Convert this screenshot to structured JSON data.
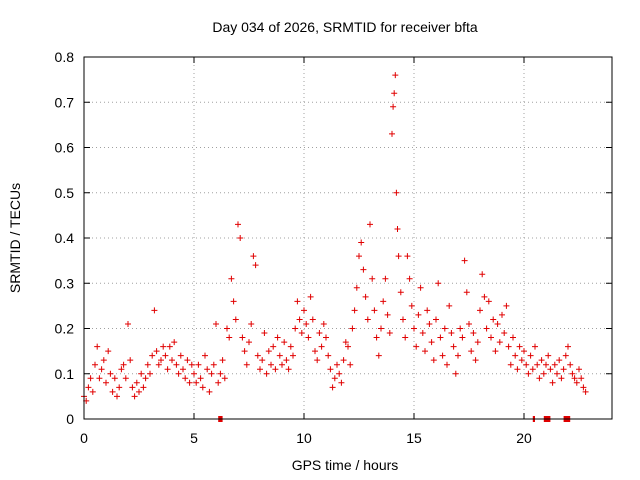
{
  "chart_data": {
    "type": "scatter",
    "title": "Day 034 of 2026, SRMTID for receiver bfta",
    "xlabel": "GPS time / hours",
    "ylabel": "SRMTID / TECUs",
    "xlim": [
      0,
      24
    ],
    "ylim": [
      0,
      0.8
    ],
    "xticks": [
      0,
      5,
      10,
      15,
      20
    ],
    "xtick_labels": [
      "0",
      "5",
      "10",
      "15",
      "20"
    ],
    "yticks": [
      0,
      0.1,
      0.2,
      0.3,
      0.4,
      0.5,
      0.6,
      0.7,
      0.8
    ],
    "ytick_labels": [
      "0",
      "0.1",
      "0.2",
      "0.3",
      "0.4",
      "0.5",
      "0.6",
      "0.7",
      "0.8"
    ],
    "grid": true,
    "marker": "+",
    "color": "#e00000",
    "series": [
      {
        "name": "SRMTID",
        "points": [
          [
            0.0,
            0.05
          ],
          [
            0.1,
            0.04
          ],
          [
            0.2,
            0.07
          ],
          [
            0.3,
            0.09
          ],
          [
            0.4,
            0.06
          ],
          [
            0.5,
            0.12
          ],
          [
            0.6,
            0.16
          ],
          [
            0.7,
            0.09
          ],
          [
            0.8,
            0.11
          ],
          [
            0.9,
            0.13
          ],
          [
            1.0,
            0.08
          ],
          [
            1.1,
            0.15
          ],
          [
            1.2,
            0.1
          ],
          [
            1.3,
            0.06
          ],
          [
            1.4,
            0.09
          ],
          [
            1.5,
            0.05
          ],
          [
            1.6,
            0.07
          ],
          [
            1.7,
            0.11
          ],
          [
            1.8,
            0.12
          ],
          [
            1.9,
            0.09
          ],
          [
            2.0,
            0.21
          ],
          [
            2.1,
            0.13
          ],
          [
            2.2,
            0.07
          ],
          [
            2.3,
            0.05
          ],
          [
            2.4,
            0.08
          ],
          [
            2.5,
            0.06
          ],
          [
            2.6,
            0.1
          ],
          [
            2.7,
            0.07
          ],
          [
            2.8,
            0.09
          ],
          [
            2.9,
            0.12
          ],
          [
            3.0,
            0.1
          ],
          [
            3.1,
            0.14
          ],
          [
            3.2,
            0.24
          ],
          [
            3.3,
            0.15
          ],
          [
            3.4,
            0.12
          ],
          [
            3.5,
            0.13
          ],
          [
            3.6,
            0.16
          ],
          [
            3.7,
            0.14
          ],
          [
            3.8,
            0.11
          ],
          [
            3.9,
            0.16
          ],
          [
            4.0,
            0.13
          ],
          [
            4.1,
            0.17
          ],
          [
            4.2,
            0.12
          ],
          [
            4.3,
            0.1
          ],
          [
            4.4,
            0.14
          ],
          [
            4.5,
            0.11
          ],
          [
            4.6,
            0.09
          ],
          [
            4.7,
            0.13
          ],
          [
            4.8,
            0.08
          ],
          [
            4.9,
            0.12
          ],
          [
            5.0,
            0.1
          ],
          [
            5.1,
            0.08
          ],
          [
            5.2,
            0.12
          ],
          [
            5.3,
            0.09
          ],
          [
            5.4,
            0.07
          ],
          [
            5.5,
            0.14
          ],
          [
            5.6,
            0.11
          ],
          [
            5.7,
            0.06
          ],
          [
            5.8,
            0.1
          ],
          [
            5.9,
            0.12
          ],
          [
            6.0,
            0.21
          ],
          [
            6.1,
            0.08
          ],
          [
            6.2,
            0.1
          ],
          [
            6.3,
            0.13
          ],
          [
            6.4,
            0.09
          ],
          [
            6.5,
            0.2
          ],
          [
            6.6,
            0.18
          ],
          [
            6.7,
            0.31
          ],
          [
            6.8,
            0.26
          ],
          [
            6.9,
            0.22
          ],
          [
            7.0,
            0.43
          ],
          [
            7.1,
            0.4
          ],
          [
            7.2,
            0.18
          ],
          [
            7.3,
            0.15
          ],
          [
            7.4,
            0.12
          ],
          [
            7.5,
            0.17
          ],
          [
            7.6,
            0.21
          ],
          [
            7.7,
            0.36
          ],
          [
            7.8,
            0.34
          ],
          [
            7.9,
            0.14
          ],
          [
            8.0,
            0.11
          ],
          [
            8.1,
            0.13
          ],
          [
            8.2,
            0.19
          ],
          [
            8.3,
            0.1
          ],
          [
            8.4,
            0.15
          ],
          [
            8.5,
            0.12
          ],
          [
            8.6,
            0.16
          ],
          [
            8.7,
            0.11
          ],
          [
            8.8,
            0.18
          ],
          [
            8.9,
            0.14
          ],
          [
            9.0,
            0.12
          ],
          [
            9.1,
            0.17
          ],
          [
            9.2,
            0.13
          ],
          [
            9.3,
            0.11
          ],
          [
            9.4,
            0.16
          ],
          [
            9.5,
            0.14
          ],
          [
            9.6,
            0.2
          ],
          [
            9.7,
            0.26
          ],
          [
            9.8,
            0.22
          ],
          [
            9.9,
            0.19
          ],
          [
            10.0,
            0.24
          ],
          [
            10.1,
            0.21
          ],
          [
            10.2,
            0.18
          ],
          [
            10.3,
            0.27
          ],
          [
            10.4,
            0.22
          ],
          [
            10.5,
            0.15
          ],
          [
            10.6,
            0.13
          ],
          [
            10.7,
            0.19
          ],
          [
            10.8,
            0.16
          ],
          [
            10.9,
            0.21
          ],
          [
            11.0,
            0.18
          ],
          [
            11.1,
            0.14
          ],
          [
            11.2,
            0.11
          ],
          [
            11.3,
            0.07
          ],
          [
            11.4,
            0.09
          ],
          [
            11.5,
            0.12
          ],
          [
            11.6,
            0.1
          ],
          [
            11.7,
            0.08
          ],
          [
            11.8,
            0.13
          ],
          [
            11.9,
            0.17
          ],
          [
            12.0,
            0.16
          ],
          [
            12.1,
            0.12
          ],
          [
            12.2,
            0.2
          ],
          [
            12.3,
            0.24
          ],
          [
            12.4,
            0.29
          ],
          [
            12.5,
            0.36
          ],
          [
            12.6,
            0.39
          ],
          [
            12.7,
            0.33
          ],
          [
            12.8,
            0.27
          ],
          [
            12.9,
            0.22
          ],
          [
            13.0,
            0.43
          ],
          [
            13.1,
            0.31
          ],
          [
            13.2,
            0.24
          ],
          [
            13.3,
            0.18
          ],
          [
            13.4,
            0.14
          ],
          [
            13.5,
            0.2
          ],
          [
            13.6,
            0.26
          ],
          [
            13.7,
            0.31
          ],
          [
            13.8,
            0.23
          ],
          [
            13.9,
            0.19
          ],
          [
            14.0,
            0.63
          ],
          [
            14.05,
            0.69
          ],
          [
            14.1,
            0.72
          ],
          [
            14.15,
            0.76
          ],
          [
            14.2,
            0.5
          ],
          [
            14.25,
            0.42
          ],
          [
            14.3,
            0.36
          ],
          [
            14.4,
            0.28
          ],
          [
            14.5,
            0.22
          ],
          [
            14.6,
            0.18
          ],
          [
            14.7,
            0.36
          ],
          [
            14.8,
            0.31
          ],
          [
            14.9,
            0.25
          ],
          [
            15.0,
            0.2
          ],
          [
            15.1,
            0.16
          ],
          [
            15.2,
            0.23
          ],
          [
            15.3,
            0.29
          ],
          [
            15.4,
            0.19
          ],
          [
            15.5,
            0.15
          ],
          [
            15.6,
            0.24
          ],
          [
            15.7,
            0.21
          ],
          [
            15.8,
            0.17
          ],
          [
            15.9,
            0.13
          ],
          [
            16.0,
            0.22
          ],
          [
            16.1,
            0.3
          ],
          [
            16.2,
            0.18
          ],
          [
            16.3,
            0.14
          ],
          [
            16.4,
            0.2
          ],
          [
            16.5,
            0.12
          ],
          [
            16.6,
            0.25
          ],
          [
            16.7,
            0.19
          ],
          [
            16.8,
            0.16
          ],
          [
            16.9,
            0.1
          ],
          [
            17.0,
            0.14
          ],
          [
            17.1,
            0.2
          ],
          [
            17.2,
            0.18
          ],
          [
            17.3,
            0.35
          ],
          [
            17.4,
            0.28
          ],
          [
            17.5,
            0.21
          ],
          [
            17.6,
            0.15
          ],
          [
            17.7,
            0.19
          ],
          [
            17.8,
            0.13
          ],
          [
            17.9,
            0.17
          ],
          [
            18.0,
            0.24
          ],
          [
            18.1,
            0.32
          ],
          [
            18.2,
            0.27
          ],
          [
            18.3,
            0.2
          ],
          [
            18.4,
            0.26
          ],
          [
            18.5,
            0.18
          ],
          [
            18.6,
            0.22
          ],
          [
            18.7,
            0.15
          ],
          [
            18.8,
            0.21
          ],
          [
            18.9,
            0.17
          ],
          [
            19.0,
            0.23
          ],
          [
            19.1,
            0.19
          ],
          [
            19.2,
            0.25
          ],
          [
            19.3,
            0.16
          ],
          [
            19.4,
            0.12
          ],
          [
            19.5,
            0.18
          ],
          [
            19.6,
            0.14
          ],
          [
            19.7,
            0.11
          ],
          [
            19.8,
            0.16
          ],
          [
            19.9,
            0.13
          ],
          [
            20.0,
            0.15
          ],
          [
            20.1,
            0.12
          ],
          [
            20.2,
            0.1
          ],
          [
            20.3,
            0.14
          ],
          [
            20.4,
            0.11
          ],
          [
            20.5,
            0.16
          ],
          [
            20.6,
            0.12
          ],
          [
            20.7,
            0.09
          ],
          [
            20.8,
            0.13
          ],
          [
            20.9,
            0.1
          ],
          [
            21.0,
            0.12
          ],
          [
            21.1,
            0.14
          ],
          [
            21.2,
            0.11
          ],
          [
            21.3,
            0.08
          ],
          [
            21.4,
            0.12
          ],
          [
            21.5,
            0.1
          ],
          [
            21.6,
            0.13
          ],
          [
            21.7,
            0.09
          ],
          [
            21.8,
            0.11
          ],
          [
            21.9,
            0.14
          ],
          [
            22.0,
            0.16
          ],
          [
            22.1,
            0.12
          ],
          [
            22.2,
            0.1
          ],
          [
            22.3,
            0.09
          ],
          [
            22.4,
            0.08
          ],
          [
            22.5,
            0.11
          ],
          [
            22.6,
            0.09
          ],
          [
            22.7,
            0.07
          ],
          [
            22.8,
            0.06
          ]
        ]
      }
    ],
    "missing_data_segments": [
      [
        6.1,
        6.3
      ],
      [
        20.4,
        20.5
      ],
      [
        20.9,
        21.2
      ],
      [
        21.8,
        22.1
      ]
    ]
  }
}
